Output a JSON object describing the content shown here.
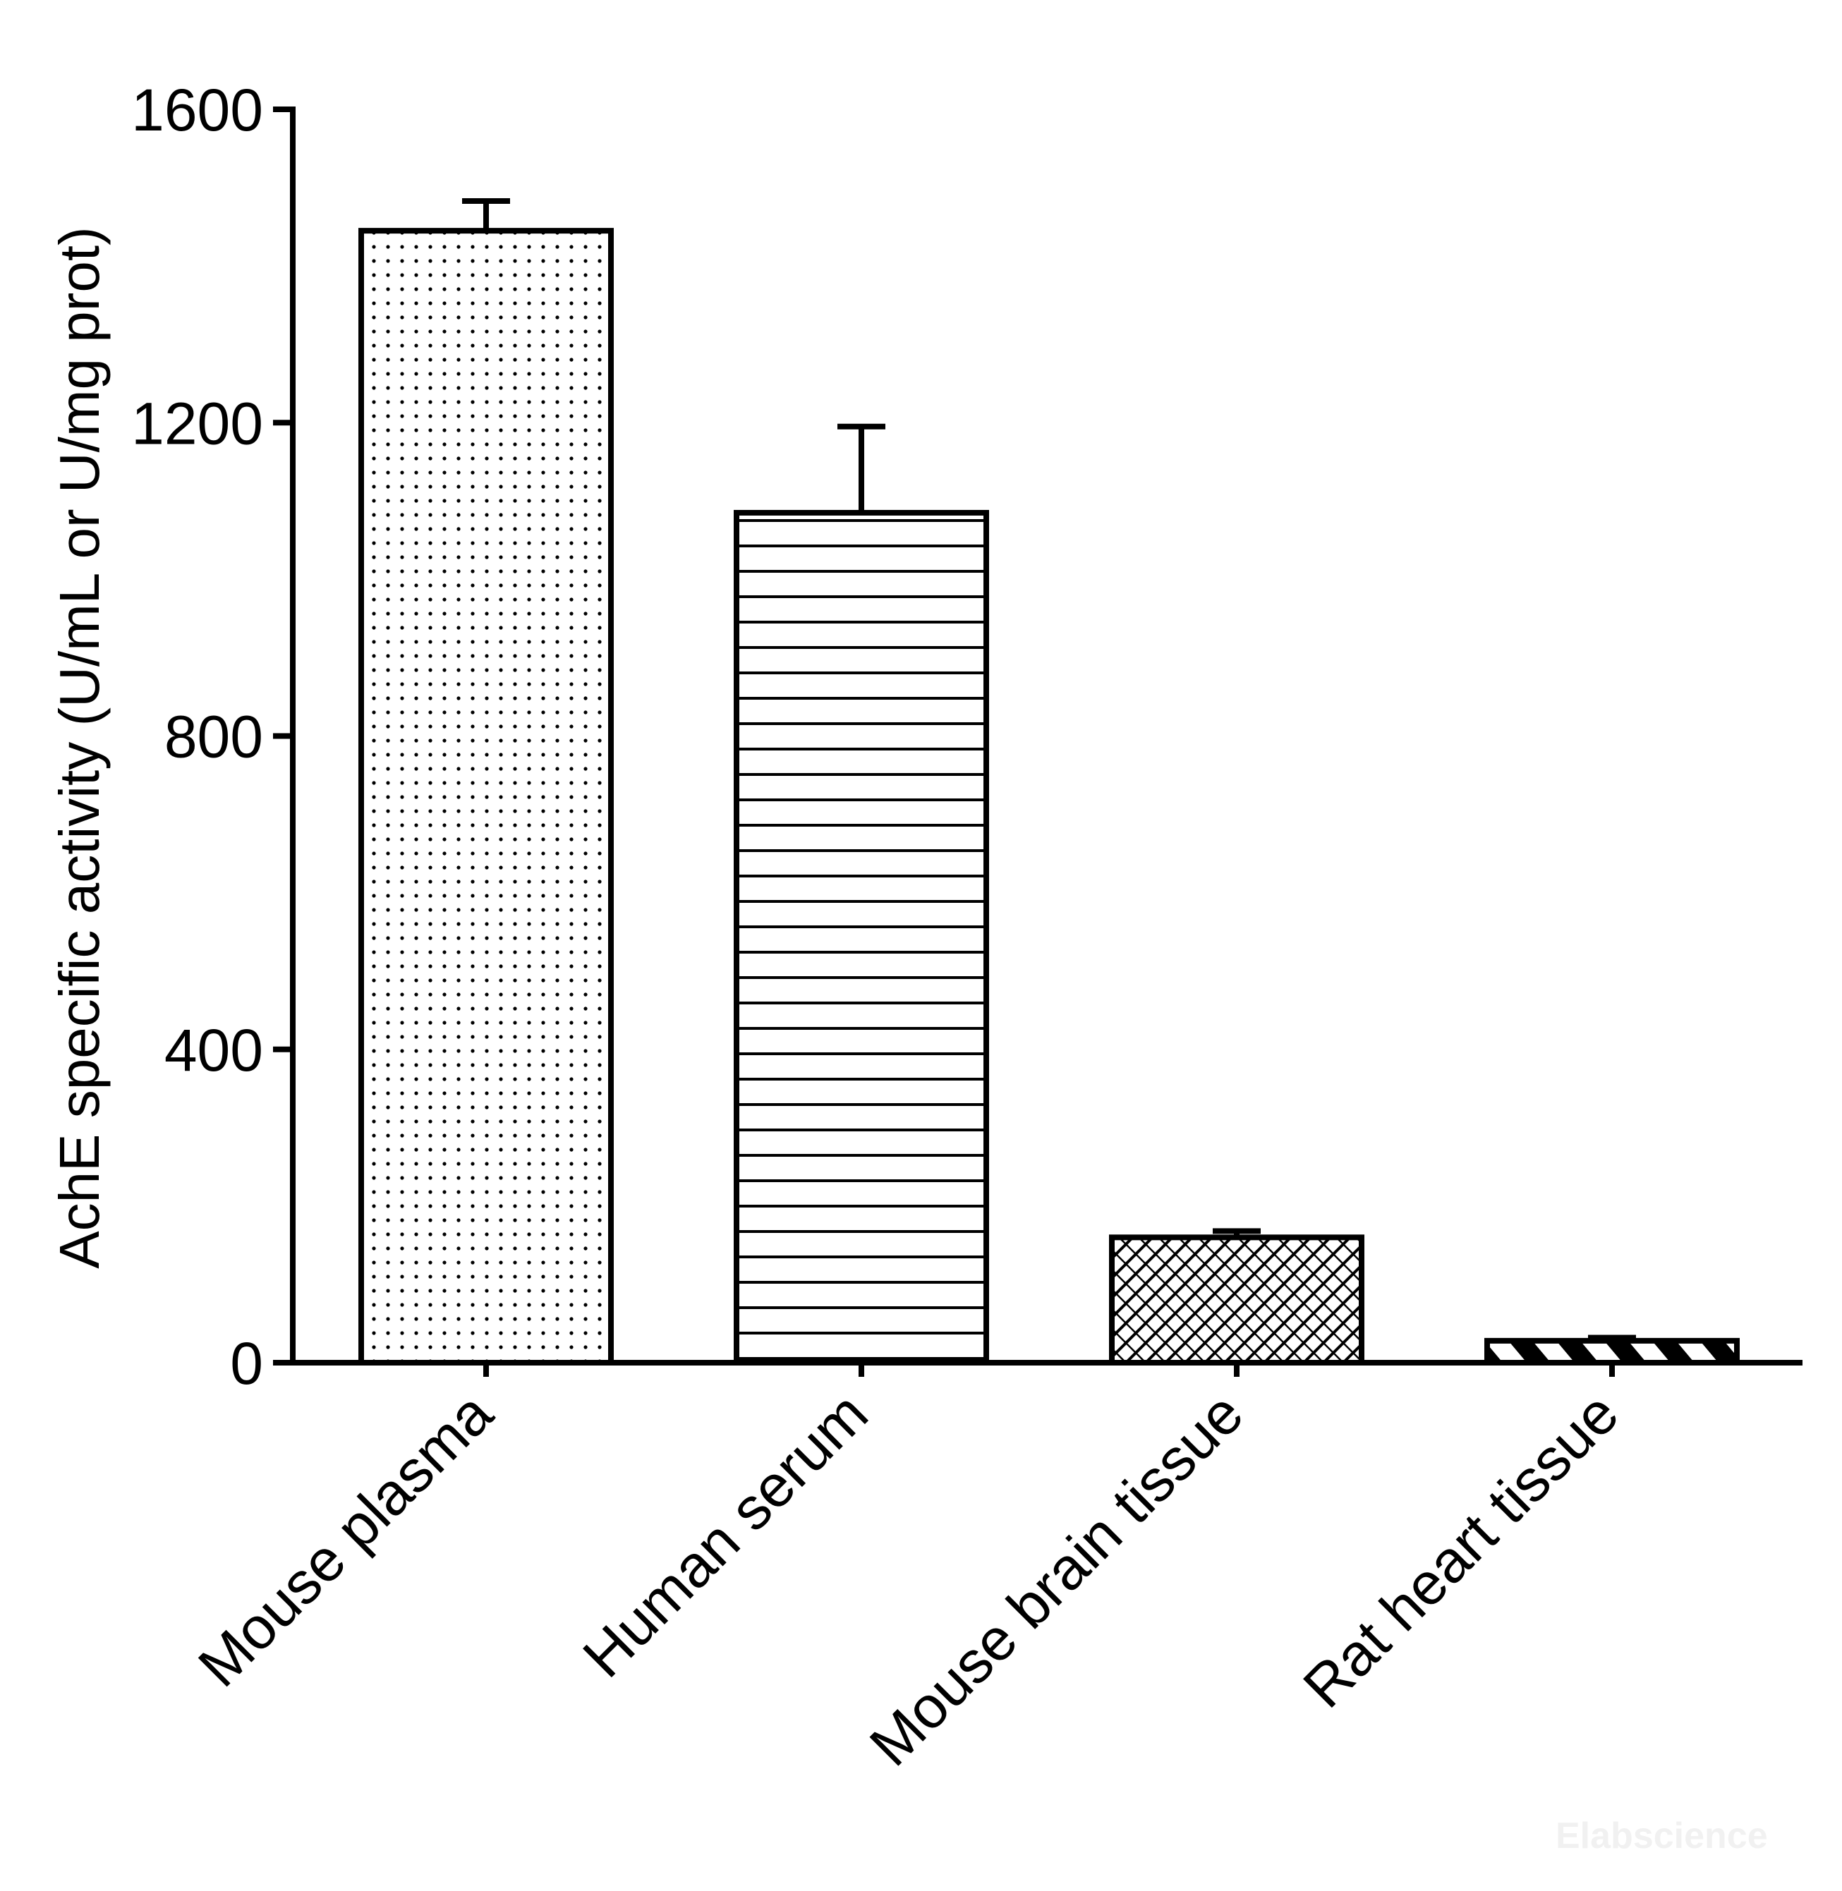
{
  "chart_data": {
    "type": "bar",
    "categories": [
      "Mouse plasma",
      "Human serum",
      "Mouse brain tissue",
      "Rat heart tissue"
    ],
    "values": [
      1445,
      1085,
      160,
      28
    ],
    "errors": [
      38,
      110,
      8,
      4
    ],
    "patterns": [
      "dots",
      "horizontal-lines",
      "crosshatch",
      "diagonal-stripes"
    ],
    "title": "",
    "xlabel": "",
    "ylabel": "AchE specific activity (U/mL or U/mg prot)",
    "ylim": [
      0,
      1600
    ],
    "yticks": [
      0,
      400,
      800,
      1200,
      1600
    ],
    "grid": false,
    "bar_fill": "#ffffff",
    "bar_stroke": "#000000"
  },
  "watermark": "Elabscience"
}
